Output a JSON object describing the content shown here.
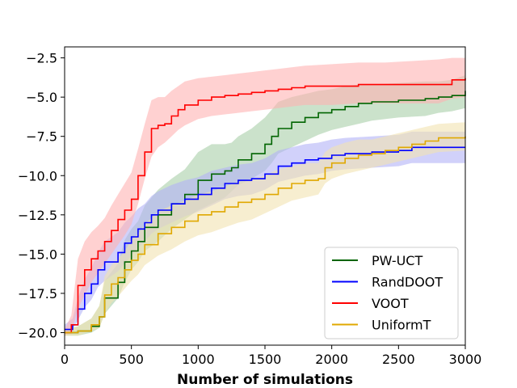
{
  "chart_data": {
    "type": "line",
    "title": "",
    "xlabel": "Number of simulations",
    "ylabel": "",
    "xlim": [
      0,
      3000
    ],
    "ylim": [
      -20.8,
      -1.8
    ],
    "xticks": [
      0,
      500,
      1000,
      1500,
      2000,
      2500,
      3000
    ],
    "yticks": [
      -20.0,
      -17.5,
      -15.0,
      -12.5,
      -10.0,
      -7.5,
      -5.0,
      -2.5
    ],
    "xtick_labels": [
      "0",
      "500",
      "1000",
      "1500",
      "2000",
      "2500",
      "3000"
    ],
    "ytick_labels": [
      "-20.0",
      "-17.5",
      "-15.0",
      "-12.5",
      "-10.0",
      "-7.5",
      "-5.0",
      "-2.5"
    ],
    "grid": false,
    "legend_position": "bottom-right",
    "series": [
      {
        "name": "PW-UCT",
        "color": "#006400",
        "band_color": "#a9cfa9",
        "x": [
          0,
          100,
          200,
          260,
          300,
          400,
          450,
          500,
          550,
          600,
          700,
          800,
          900,
          1000,
          1100,
          1200,
          1250,
          1300,
          1400,
          1500,
          1550,
          1600,
          1700,
          1800,
          1900,
          2000,
          2100,
          2200,
          2300,
          2500,
          2700,
          2800,
          2900,
          3000
        ],
        "y": [
          -20.0,
          -19.9,
          -19.6,
          -19.0,
          -17.8,
          -16.8,
          -15.5,
          -14.8,
          -14.2,
          -13.3,
          -12.5,
          -11.8,
          -11.2,
          -10.3,
          -9.9,
          -9.7,
          -9.5,
          -9.0,
          -8.6,
          -8.0,
          -7.5,
          -7.0,
          -6.6,
          -6.3,
          -6.0,
          -5.8,
          -5.6,
          -5.4,
          -5.3,
          -5.2,
          -5.1,
          -5.0,
          -4.9,
          -4.6
        ],
        "lower": [
          -20.2,
          -20.2,
          -20.0,
          -19.7,
          -18.8,
          -17.8,
          -16.8,
          -16.0,
          -15.5,
          -14.8,
          -14.2,
          -13.4,
          -12.8,
          -12.2,
          -11.8,
          -11.4,
          -11.0,
          -10.6,
          -10.2,
          -9.7,
          -9.2,
          -8.6,
          -8.2,
          -7.8,
          -7.4,
          -7.1,
          -6.9,
          -6.7,
          -6.5,
          -6.3,
          -6.2,
          -6.0,
          -5.9,
          -5.7
        ],
        "upper": [
          -19.8,
          -19.6,
          -19.1,
          -18.3,
          -16.7,
          -15.6,
          -14.1,
          -13.4,
          -12.9,
          -11.9,
          -10.9,
          -10.2,
          -9.6,
          -8.5,
          -8.0,
          -8.0,
          -7.9,
          -7.5,
          -7.0,
          -6.3,
          -5.8,
          -5.3,
          -5.0,
          -4.8,
          -4.6,
          -4.5,
          -4.3,
          -4.2,
          -4.2,
          -4.1,
          -4.0,
          -4.0,
          -3.9,
          -3.6
        ]
      },
      {
        "name": "RandDOOT",
        "color": "#0000ff",
        "band_color": "#b3b3f7",
        "x": [
          0,
          60,
          100,
          150,
          200,
          250,
          300,
          400,
          450,
          500,
          550,
          600,
          650,
          700,
          800,
          900,
          1000,
          1100,
          1200,
          1300,
          1400,
          1500,
          1600,
          1700,
          1800,
          1900,
          2000,
          2100,
          2300,
          2500,
          2600,
          2800,
          3000
        ],
        "y": [
          -19.8,
          -19.5,
          -18.5,
          -17.5,
          -16.9,
          -16.0,
          -15.5,
          -14.9,
          -14.3,
          -13.9,
          -13.4,
          -13.0,
          -12.5,
          -12.2,
          -11.8,
          -11.5,
          -11.2,
          -10.8,
          -10.5,
          -10.3,
          -10.2,
          -9.9,
          -9.4,
          -9.2,
          -9.0,
          -8.9,
          -8.7,
          -8.6,
          -8.5,
          -8.4,
          -8.2,
          -8.2,
          -8.2
        ],
        "lower": [
          -20.0,
          -19.8,
          -19.2,
          -18.4,
          -17.9,
          -17.1,
          -16.7,
          -16.1,
          -15.6,
          -15.1,
          -14.6,
          -14.2,
          -13.7,
          -13.4,
          -13.0,
          -12.6,
          -12.3,
          -11.9,
          -11.5,
          -11.3,
          -11.2,
          -10.9,
          -10.4,
          -10.2,
          -10.0,
          -9.9,
          -9.7,
          -9.6,
          -9.5,
          -9.4,
          -9.2,
          -9.2,
          -9.2
        ],
        "upper": [
          -19.5,
          -19.1,
          -17.8,
          -16.6,
          -15.9,
          -14.9,
          -14.2,
          -13.6,
          -13.0,
          -12.6,
          -12.1,
          -11.8,
          -11.3,
          -11.0,
          -10.6,
          -10.3,
          -10.1,
          -9.7,
          -9.5,
          -9.3,
          -9.2,
          -8.9,
          -8.4,
          -8.2,
          -8.0,
          -7.9,
          -7.7,
          -7.6,
          -7.5,
          -7.4,
          -7.2,
          -7.2,
          -7.2
        ]
      },
      {
        "name": "VOOT",
        "color": "#ff0000",
        "band_color": "#ffb3b3",
        "x": [
          0,
          50,
          100,
          150,
          200,
          250,
          300,
          350,
          400,
          450,
          500,
          550,
          600,
          650,
          700,
          750,
          800,
          850,
          900,
          1000,
          1100,
          1200,
          1300,
          1400,
          1500,
          1600,
          1700,
          1800,
          2000,
          2200,
          2400,
          2600,
          2800,
          2900,
          3000
        ],
        "y": [
          -20.0,
          -19.5,
          -17.0,
          -16.0,
          -15.3,
          -14.8,
          -14.2,
          -13.5,
          -12.8,
          -12.2,
          -11.5,
          -10.0,
          -8.5,
          -7.0,
          -6.8,
          -6.7,
          -6.2,
          -5.8,
          -5.5,
          -5.2,
          -5.0,
          -4.9,
          -4.8,
          -4.7,
          -4.6,
          -4.5,
          -4.4,
          -4.3,
          -4.3,
          -4.2,
          -4.2,
          -4.2,
          -4.2,
          -3.9,
          -3.8
        ],
        "lower": [
          -20.2,
          -20.0,
          -18.5,
          -17.6,
          -16.8,
          -16.2,
          -15.6,
          -15.0,
          -14.4,
          -13.8,
          -13.1,
          -11.8,
          -10.2,
          -8.8,
          -8.2,
          -7.9,
          -7.5,
          -7.1,
          -6.8,
          -6.4,
          -6.2,
          -6.1,
          -6.0,
          -5.9,
          -5.8,
          -5.7,
          -5.6,
          -5.5,
          -5.5,
          -5.4,
          -5.4,
          -5.4,
          -5.4,
          -5.1,
          -5.0
        ],
        "upper": [
          -19.8,
          -18.9,
          -15.3,
          -14.2,
          -13.6,
          -13.2,
          -12.7,
          -11.9,
          -11.2,
          -10.5,
          -9.8,
          -8.3,
          -6.7,
          -5.2,
          -5.0,
          -5.0,
          -4.6,
          -4.3,
          -4.0,
          -3.8,
          -3.7,
          -3.6,
          -3.5,
          -3.4,
          -3.3,
          -3.2,
          -3.1,
          -3.0,
          -2.9,
          -2.8,
          -2.8,
          -2.7,
          -2.6,
          -2.5,
          -2.5
        ]
      },
      {
        "name": "UniformT",
        "color": "#e0a800",
        "band_color": "#f2e2b1",
        "x": [
          0,
          100,
          200,
          260,
          300,
          350,
          400,
          450,
          500,
          550,
          600,
          700,
          800,
          900,
          1000,
          1100,
          1200,
          1300,
          1400,
          1500,
          1600,
          1700,
          1800,
          1900,
          1950,
          2000,
          2100,
          2200,
          2300,
          2400,
          2500,
          2600,
          2700,
          2800,
          3000
        ],
        "y": [
          -20.0,
          -19.9,
          -19.5,
          -19.0,
          -17.6,
          -16.9,
          -16.5,
          -16.0,
          -15.4,
          -15.0,
          -14.4,
          -13.7,
          -13.3,
          -12.9,
          -12.5,
          -12.3,
          -12.0,
          -11.7,
          -11.5,
          -11.2,
          -10.8,
          -10.5,
          -10.3,
          -10.2,
          -9.5,
          -9.2,
          -8.9,
          -8.7,
          -8.6,
          -8.4,
          -8.2,
          -8.0,
          -7.8,
          -7.6,
          -7.5
        ],
        "lower": [
          -20.2,
          -20.2,
          -19.9,
          -19.7,
          -18.8,
          -18.1,
          -17.7,
          -17.2,
          -16.7,
          -16.3,
          -15.7,
          -15.1,
          -14.7,
          -14.2,
          -13.8,
          -13.6,
          -13.3,
          -13.0,
          -12.8,
          -12.4,
          -12.0,
          -11.6,
          -11.4,
          -11.2,
          -10.5,
          -10.2,
          -9.9,
          -9.7,
          -9.5,
          -9.3,
          -9.1,
          -8.9,
          -8.7,
          -8.5,
          -8.4
        ],
        "upper": [
          -19.8,
          -19.6,
          -19.1,
          -18.3,
          -16.4,
          -15.7,
          -15.3,
          -14.8,
          -14.1,
          -13.7,
          -13.1,
          -12.3,
          -11.9,
          -11.6,
          -11.2,
          -11.0,
          -10.7,
          -10.4,
          -10.2,
          -10.0,
          -9.6,
          -9.4,
          -9.2,
          -9.2,
          -8.5,
          -8.2,
          -7.9,
          -7.7,
          -7.7,
          -7.5,
          -7.3,
          -7.1,
          -6.9,
          -6.7,
          -6.6
        ]
      }
    ]
  }
}
